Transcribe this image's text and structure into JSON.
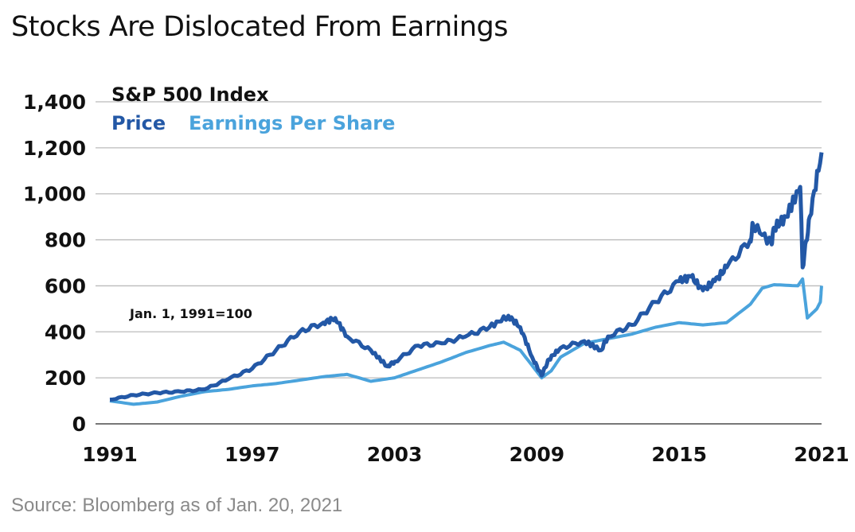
{
  "chart_data": {
    "type": "line",
    "title": "Stocks Are Dislocated From Earnings",
    "subtitle": "S&P 500 Index",
    "annotation": "Jan. 1, 1991=100",
    "source": "Source: Bloomberg as of Jan. 20, 2021",
    "xlabel": "",
    "ylabel": "",
    "xlim": [
      1991,
      2021
    ],
    "ylim": [
      0,
      1400
    ],
    "grid": true,
    "legend_placement": "top-left",
    "x_ticks": [
      "1991",
      "1997",
      "2003",
      "2009",
      "2015",
      "2021"
    ],
    "y_ticks": [
      "0",
      "200",
      "400",
      "600",
      "800",
      "1,000",
      "1,200",
      "1,400"
    ],
    "series": [
      {
        "name": "Price",
        "color": "#2358a6",
        "x": [
          1991,
          1992,
          1993,
          1994,
          1995,
          1996,
          1997,
          1998,
          1999,
          2000,
          2000.5,
          2001,
          2002,
          2002.7,
          2003,
          2004,
          2005,
          2006,
          2007,
          2007.8,
          2008.3,
          2008.8,
          2009.2,
          2009.5,
          2010,
          2011,
          2011.7,
          2012,
          2013,
          2014,
          2015,
          2015.5,
          2016,
          2016.5,
          2017,
          2018,
          2018.1,
          2018.9,
          2019,
          2019.5,
          2020.1,
          2020.2,
          2020.5,
          2021
        ],
        "values": [
          105,
          125,
          135,
          140,
          150,
          195,
          240,
          320,
          400,
          440,
          460,
          380,
          320,
          250,
          270,
          340,
          350,
          380,
          420,
          470,
          420,
          290,
          210,
          280,
          330,
          360,
          320,
          380,
          430,
          530,
          620,
          640,
          580,
          620,
          680,
          800,
          870,
          780,
          850,
          900,
          1030,
          680,
          900,
          1180
        ]
      },
      {
        "name": "Earnings Per Share",
        "color": "#4aa3dc",
        "x": [
          1991,
          1992,
          1993,
          1994,
          1995,
          1996,
          1997,
          1998,
          1999,
          2000,
          2001,
          2002,
          2003,
          2004,
          2005,
          2006,
          2007,
          2007.6,
          2008.3,
          2009.2,
          2009.6,
          2010,
          2011,
          2012,
          2013,
          2014,
          2015,
          2016,
          2017,
          2018,
          2018.5,
          2019,
          2020,
          2020.2,
          2020.4,
          2020.8,
          2020.95,
          2021
        ],
        "values": [
          100,
          85,
          95,
          120,
          140,
          150,
          165,
          175,
          190,
          205,
          215,
          185,
          200,
          235,
          270,
          310,
          340,
          355,
          320,
          200,
          230,
          290,
          350,
          370,
          390,
          420,
          440,
          430,
          440,
          520,
          590,
          605,
          600,
          630,
          460,
          500,
          530,
          600
        ]
      }
    ]
  }
}
